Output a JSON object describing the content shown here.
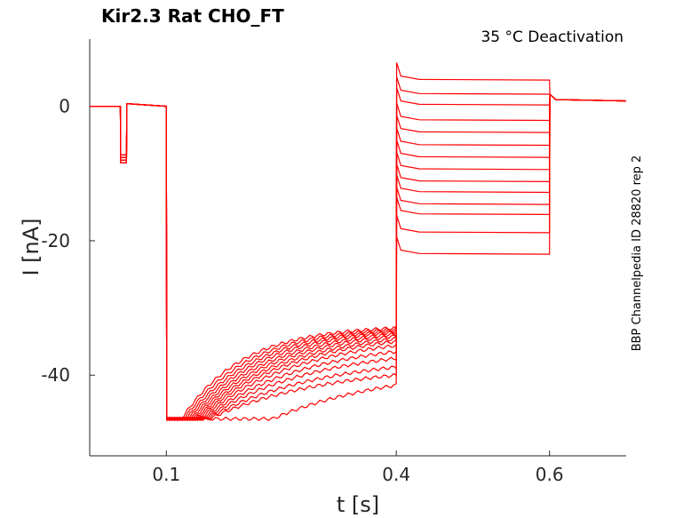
{
  "chart_data": {
    "type": "line",
    "title": "Kir2.3  Rat  CHO_FT",
    "annotation": "35 °C  Deactivation",
    "side_label": "BBP Channelpedia ID 28820 rep 2",
    "xlabel": "t [s]",
    "ylabel": "I [nA]",
    "xlim": [
      0.0,
      0.7
    ],
    "ylim": [
      -52,
      10
    ],
    "xticks": [
      0.1,
      0.4,
      0.6
    ],
    "xtick_labels": [
      "0.1",
      "0.4",
      "0.6"
    ],
    "yticks": [
      0,
      -20,
      -40
    ],
    "ytick_labels": [
      "0",
      "-20",
      "-40"
    ],
    "grid": false,
    "color": "#ff0000",
    "prepulse": {
      "start": 0.04,
      "end": 0.048,
      "values": [
        -7.2,
        -7.6,
        -8.0,
        -8.4
      ]
    },
    "step": {
      "start": 0.1,
      "end": 0.4,
      "initial": -46.5
    },
    "series": [
      {
        "values_step_end": -41.5,
        "values_deactivation": -22.0
      },
      {
        "values_step_end": -40.0,
        "values_deactivation": -18.8
      },
      {
        "values_step_end": -38.8,
        "values_deactivation": -16.1
      },
      {
        "values_step_end": -37.5,
        "values_deactivation": -14.6
      },
      {
        "values_step_end": -36.5,
        "values_deactivation": -12.8
      },
      {
        "values_step_end": -35.6,
        "values_deactivation": -11.2
      },
      {
        "values_step_end": -35.0,
        "values_deactivation": -9.4
      },
      {
        "values_step_end": -34.6,
        "values_deactivation": -7.6
      },
      {
        "values_step_end": -34.2,
        "values_deactivation": -5.8
      },
      {
        "values_step_end": -33.9,
        "values_deactivation": -3.9
      },
      {
        "values_step_end": -33.6,
        "values_deactivation": -2.1
      },
      {
        "values_step_end": -33.4,
        "values_deactivation": 0.2
      },
      {
        "values_step_end": -33.2,
        "values_deactivation": 1.8
      },
      {
        "values_step_end": -33.0,
        "values_deactivation": 3.9
      }
    ],
    "tail": {
      "start": 0.6,
      "end": 0.7,
      "value": 0.8
    }
  }
}
